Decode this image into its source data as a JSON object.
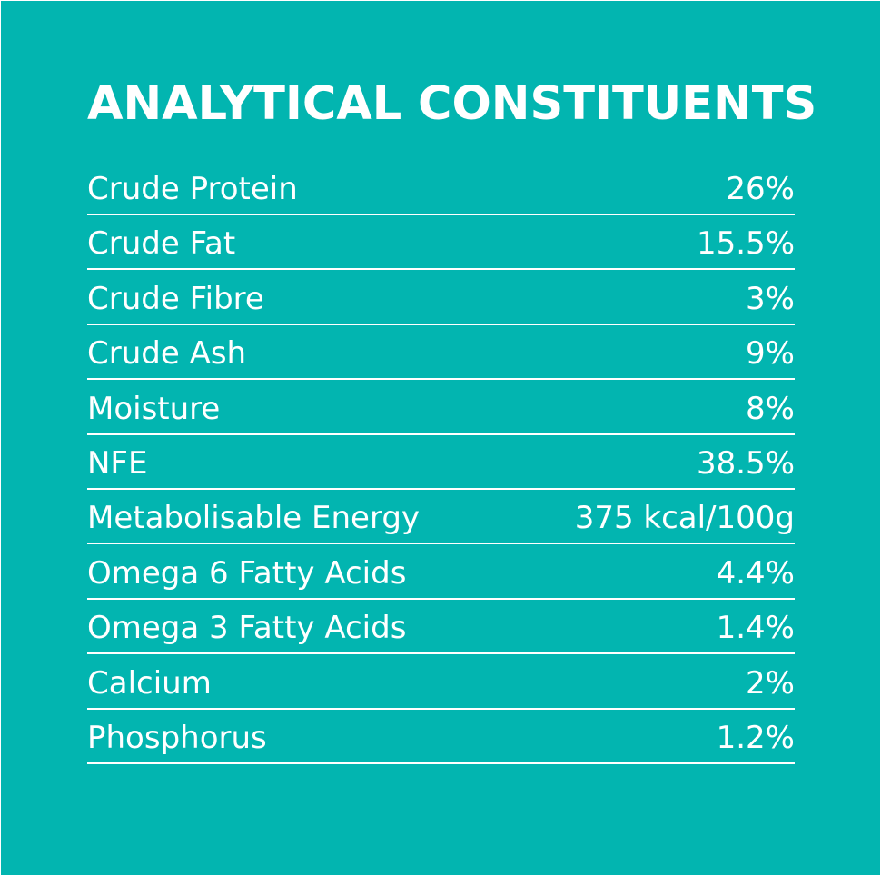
{
  "title": "ANALYTICAL CONSTITUENTS",
  "colors": {
    "background": "#02b5b0",
    "text": "#ffffff"
  },
  "rows": [
    {
      "label": "Crude Protein",
      "value": "26%"
    },
    {
      "label": "Crude Fat",
      "value": "15.5%"
    },
    {
      "label": "Crude Fibre",
      "value": "3%"
    },
    {
      "label": "Crude Ash",
      "value": "9%"
    },
    {
      "label": "Moisture",
      "value": "8%"
    },
    {
      "label": "NFE",
      "value": "38.5%"
    },
    {
      "label": "Metabolisable Energy",
      "value": "375 kcal/100g"
    },
    {
      "label": "Omega 6 Fatty Acids",
      "value": "4.4%"
    },
    {
      "label": "Omega 3 Fatty Acids",
      "value": "1.4%"
    },
    {
      "label": "Calcium",
      "value": "2%"
    },
    {
      "label": "Phosphorus",
      "value": "1.2%"
    }
  ]
}
